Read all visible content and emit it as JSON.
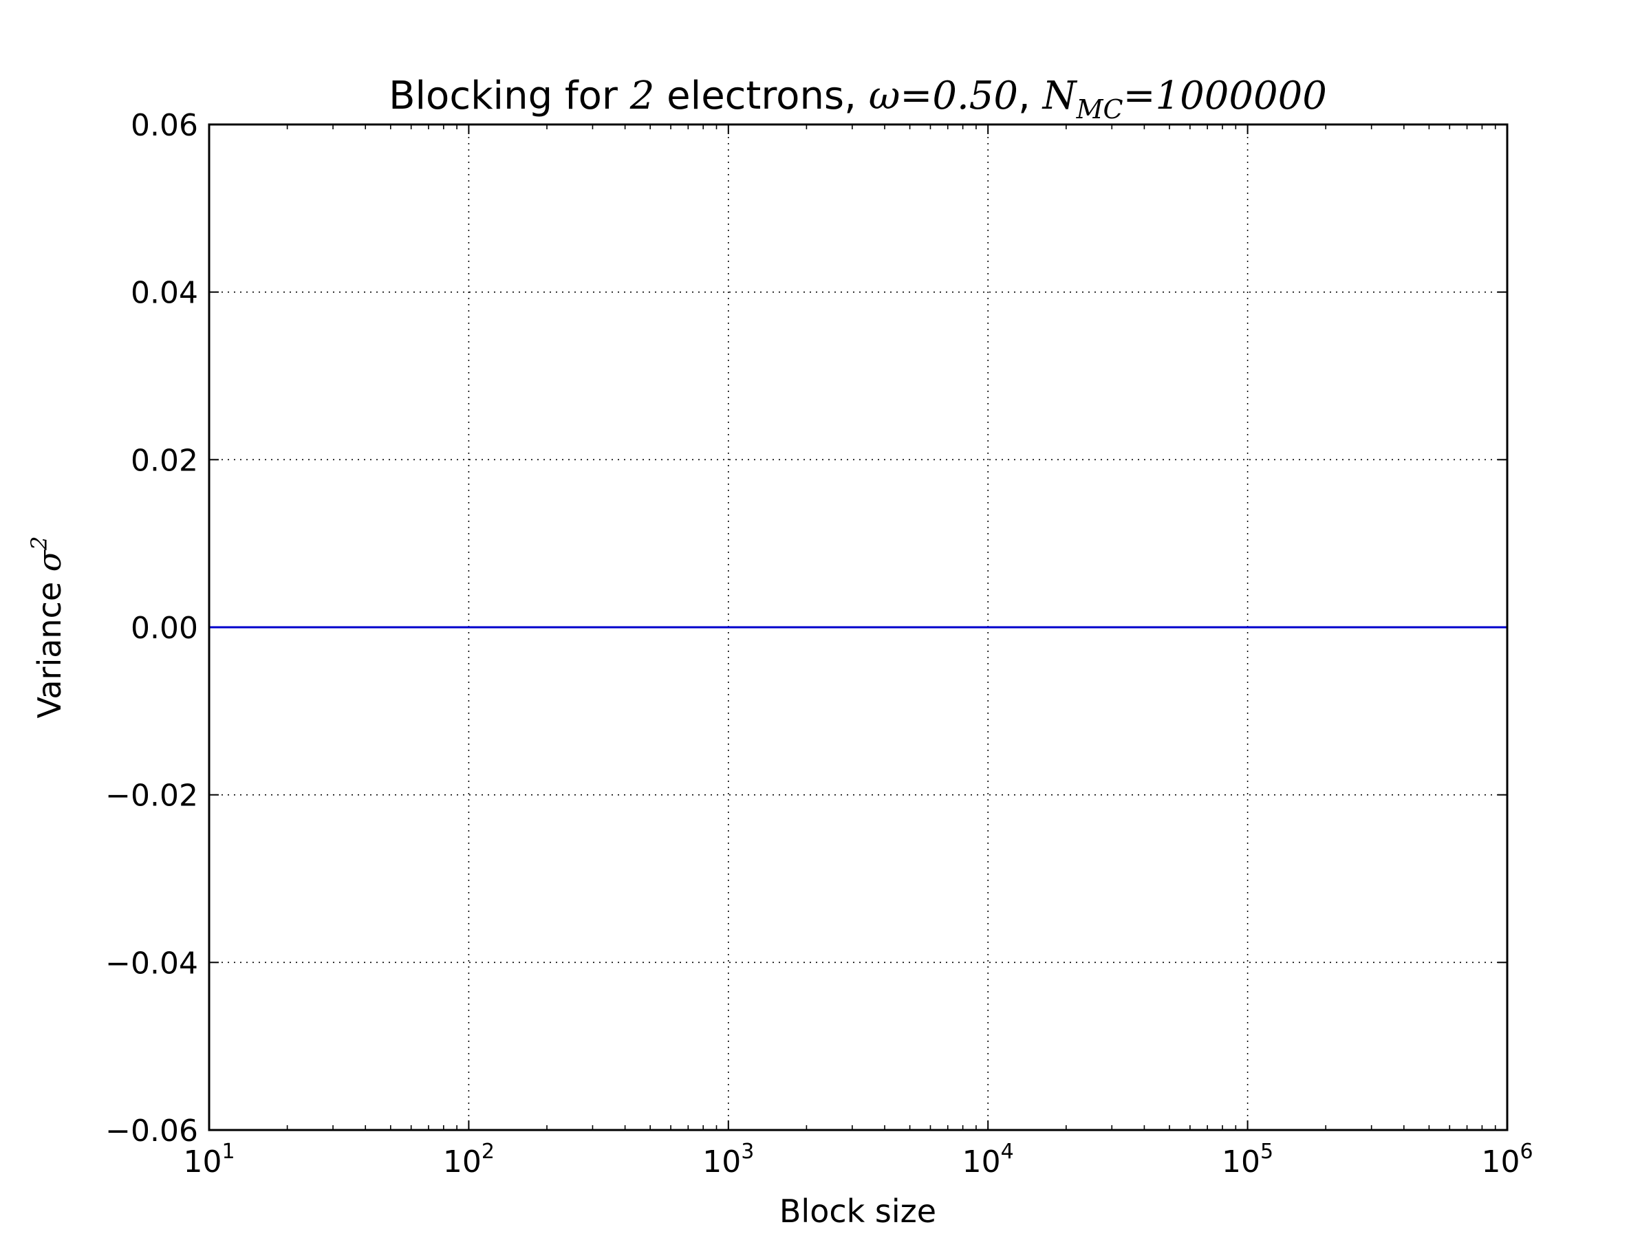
{
  "chart_data": {
    "type": "line",
    "title": {
      "prefix": "Blocking for ",
      "n_electrons": "2",
      "middle": " electrons, ",
      "omega_symbol": "ω",
      "omega_eq": "=0.50",
      "sep": ", ",
      "n_symbol": "N",
      "n_subscript": "MC",
      "n_eq": "=1000000"
    },
    "xlabel": "Block size",
    "ylabel": {
      "text": "Variance ",
      "symbol": "σ",
      "superscript": "2"
    },
    "x_scale": "log",
    "xlim": [
      10,
      1000000
    ],
    "ylim": [
      -0.06,
      0.06
    ],
    "x_ticks": [
      {
        "value": 10,
        "base": "10",
        "exp": "1"
      },
      {
        "value": 100,
        "base": "10",
        "exp": "2"
      },
      {
        "value": 1000,
        "base": "10",
        "exp": "3"
      },
      {
        "value": 10000,
        "base": "10",
        "exp": "4"
      },
      {
        "value": 100000,
        "base": "10",
        "exp": "5"
      },
      {
        "value": 1000000,
        "base": "10",
        "exp": "6"
      }
    ],
    "y_ticks": [
      {
        "value": 0.06,
        "label": "0.06"
      },
      {
        "value": 0.04,
        "label": "0.04"
      },
      {
        "value": 0.02,
        "label": "0.02"
      },
      {
        "value": 0.0,
        "label": "0.00"
      },
      {
        "value": -0.02,
        "label": "−0.02"
      },
      {
        "value": -0.04,
        "label": "−0.04"
      },
      {
        "value": -0.06,
        "label": "−0.06"
      }
    ],
    "grid": true,
    "series": [
      {
        "color": "#0000cc",
        "x": [
          10,
          100,
          1000,
          10000,
          100000,
          1000000
        ],
        "y": [
          0,
          0,
          0,
          0,
          0,
          0
        ]
      }
    ]
  }
}
